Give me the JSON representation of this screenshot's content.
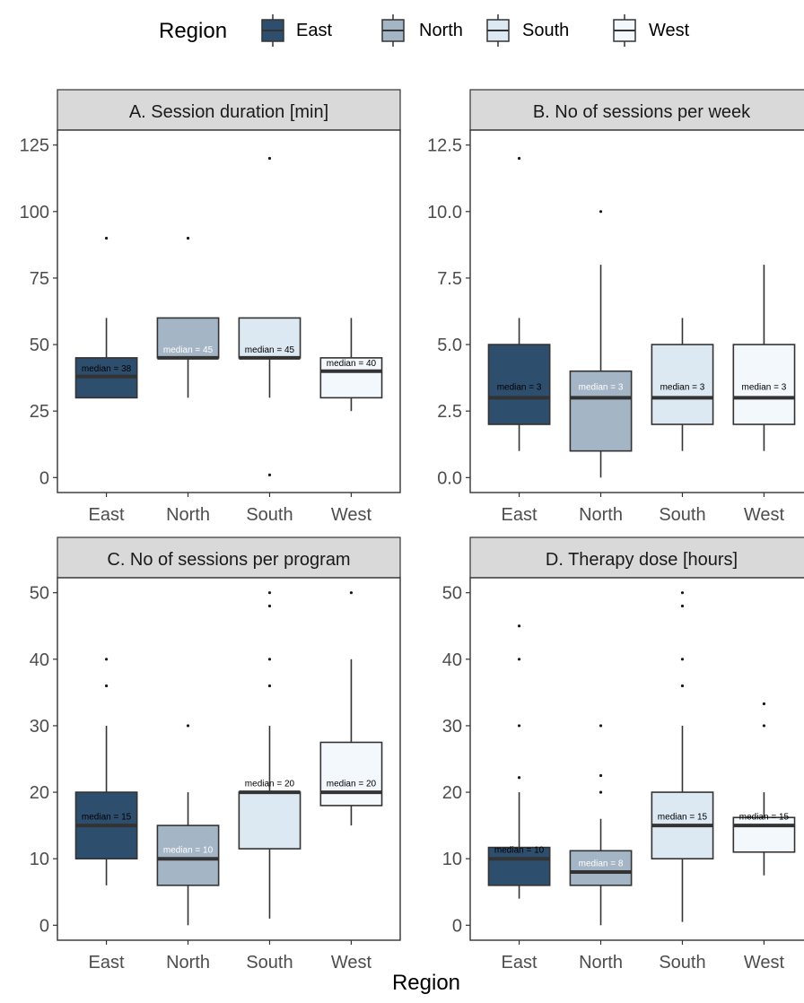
{
  "legend": {
    "title": "Region",
    "entries": [
      {
        "label": "East",
        "color": "#2E4E6E"
      },
      {
        "label": "North",
        "color": "#A4B5C5"
      },
      {
        "label": "South",
        "color": "#DCE8F2"
      },
      {
        "label": "West",
        "color": "#F3F8FD"
      }
    ]
  },
  "xlabel": "Region",
  "colors": {
    "strip_bg": "#D9D9D9",
    "box_stroke": "#333333",
    "median_line": "#333333",
    "axis_text": "#4D4D4D",
    "label_dark": "#000000",
    "label_light": "#FFFFFF"
  },
  "chart_data": [
    {
      "type": "box",
      "title": "A. Session duration [min]",
      "categories": [
        "East",
        "North",
        "South",
        "West"
      ],
      "ylim": [
        0,
        125
      ],
      "yticks": [
        0,
        25,
        50,
        75,
        100,
        125
      ],
      "yticklabels": [
        "0",
        "25",
        "50",
        "75",
        "100",
        "125"
      ],
      "boxes": [
        {
          "category": "East",
          "whisker_low": 30,
          "q1": 30,
          "median": 38,
          "q3": 45,
          "whisker_high": 60,
          "outliers": [
            90
          ],
          "label": "median = 38",
          "label_y": 41
        },
        {
          "category": "North",
          "whisker_low": 30,
          "q1": 45,
          "median": 45,
          "q3": 60,
          "whisker_high": 60,
          "outliers": [
            90
          ],
          "label": "median = 45",
          "label_y": 48
        },
        {
          "category": "South",
          "whisker_low": 30,
          "q1": 45,
          "median": 45,
          "q3": 60,
          "whisker_high": 60,
          "outliers": [
            120,
            1
          ],
          "label": "median = 45",
          "label_y": 48
        },
        {
          "category": "West",
          "whisker_low": 25,
          "q1": 30,
          "median": 40,
          "q3": 45,
          "whisker_high": 60,
          "outliers": [],
          "label": "median = 40",
          "label_y": 43
        }
      ]
    },
    {
      "type": "box",
      "title": "B. No of sessions per week",
      "categories": [
        "East",
        "North",
        "South",
        "West"
      ],
      "ylim": [
        0,
        12.5
      ],
      "yticks": [
        0,
        2.5,
        5,
        7.5,
        10,
        12.5
      ],
      "yticklabels": [
        "0.0",
        "2.5",
        "5.0",
        "7.5",
        "10.0",
        "12.5"
      ],
      "boxes": [
        {
          "category": "East",
          "whisker_low": 1,
          "q1": 2,
          "median": 3,
          "q3": 5,
          "whisker_high": 6,
          "outliers": [
            12
          ],
          "label": "median = 3",
          "label_y": 3.4
        },
        {
          "category": "North",
          "whisker_low": 0,
          "q1": 1,
          "median": 3,
          "q3": 4,
          "whisker_high": 8,
          "outliers": [
            10
          ],
          "label": "median = 3",
          "label_y": 3.4
        },
        {
          "category": "South",
          "whisker_low": 1,
          "q1": 2,
          "median": 3,
          "q3": 5,
          "whisker_high": 6,
          "outliers": [],
          "label": "median = 3",
          "label_y": 3.4
        },
        {
          "category": "West",
          "whisker_low": 1,
          "q1": 2,
          "median": 3,
          "q3": 5,
          "whisker_high": 8,
          "outliers": [],
          "label": "median = 3",
          "label_y": 3.4
        }
      ]
    },
    {
      "type": "box",
      "title": "C. No of sessions per program",
      "categories": [
        "East",
        "North",
        "South",
        "West"
      ],
      "ylim": [
        0,
        50
      ],
      "yticks": [
        0,
        10,
        20,
        30,
        40,
        50
      ],
      "yticklabels": [
        "0",
        "10",
        "20",
        "30",
        "40",
        "50"
      ],
      "boxes": [
        {
          "category": "East",
          "whisker_low": 6,
          "q1": 10,
          "median": 15,
          "q3": 20,
          "whisker_high": 30,
          "outliers": [
            36,
            40
          ],
          "label": "median = 15",
          "label_y": 16.3
        },
        {
          "category": "North",
          "whisker_low": 0,
          "q1": 6,
          "median": 10,
          "q3": 15,
          "whisker_high": 20,
          "outliers": [
            30
          ],
          "label": "median = 10",
          "label_y": 11.3
        },
        {
          "category": "South",
          "whisker_low": 1,
          "q1": 11.5,
          "median": 20,
          "q3": 20,
          "whisker_high": 30,
          "outliers": [
            36,
            40,
            48,
            50
          ],
          "label": "median = 20",
          "label_y": 21.3
        },
        {
          "category": "West",
          "whisker_low": 15,
          "q1": 18,
          "median": 20,
          "q3": 27.5,
          "whisker_high": 40,
          "outliers": [
            50
          ],
          "label": "median = 20",
          "label_y": 21.3
        }
      ]
    },
    {
      "type": "box",
      "title": "D. Therapy dose [hours]",
      "categories": [
        "East",
        "North",
        "South",
        "West"
      ],
      "ylim": [
        0,
        50
      ],
      "yticks": [
        0,
        10,
        20,
        30,
        40,
        50
      ],
      "yticklabels": [
        "0",
        "10",
        "20",
        "30",
        "40",
        "50"
      ],
      "boxes": [
        {
          "category": "East",
          "whisker_low": 4,
          "q1": 6,
          "median": 10,
          "q3": 11.7,
          "whisker_high": 20,
          "outliers": [
            22.2,
            30,
            40,
            45
          ],
          "label": "median = 10",
          "label_y": 11.3
        },
        {
          "category": "North",
          "whisker_low": 0,
          "q1": 6,
          "median": 8,
          "q3": 11.2,
          "whisker_high": 16,
          "outliers": [
            20,
            22.5,
            30
          ],
          "label": "median = 8",
          "label_y": 9.3
        },
        {
          "category": "South",
          "whisker_low": 0.5,
          "q1": 10,
          "median": 15,
          "q3": 20,
          "whisker_high": 30,
          "outliers": [
            36,
            40,
            48,
            50
          ],
          "label": "median = 15",
          "label_y": 16.3
        },
        {
          "category": "West",
          "whisker_low": 7.5,
          "q1": 11,
          "median": 15,
          "q3": 16.2,
          "whisker_high": 20,
          "outliers": [
            30,
            33.3
          ],
          "label": "median = 15",
          "label_y": 16.3
        }
      ]
    }
  ]
}
